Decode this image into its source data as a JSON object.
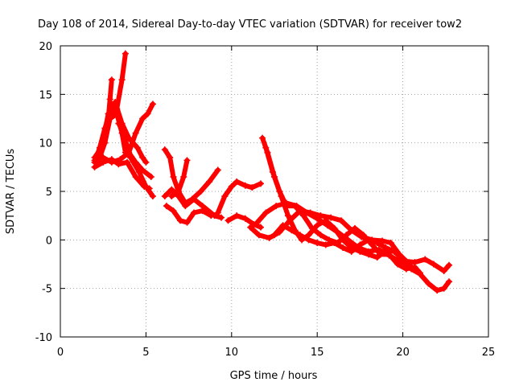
{
  "chart_data": {
    "type": "scatter",
    "title": "Day 108 of 2014, Sidereal Day-to-day VTEC variation (SDTVAR) for receiver tow2",
    "xlabel": "GPS time / hours",
    "ylabel": "SDTVAR / TECUs",
    "xlim": [
      0,
      25
    ],
    "ylim": [
      -10,
      20
    ],
    "xticks": [
      0,
      5,
      10,
      15,
      20,
      25
    ],
    "yticks": [
      -10,
      -5,
      0,
      5,
      10,
      15,
      20
    ],
    "xtick_labels": [
      "0",
      "5",
      "10",
      "15",
      "20",
      "25"
    ],
    "ytick_labels": [
      "-10",
      "-5",
      "0",
      "5",
      "10",
      "15",
      "20"
    ],
    "grid": true,
    "marker": "+",
    "color": "#ff0000",
    "series": [
      {
        "name": "track-1",
        "points": [
          [
            2.0,
            8.5
          ],
          [
            2.4,
            9.5
          ],
          [
            2.8,
            13.0
          ],
          [
            3.2,
            14.2
          ],
          [
            3.6,
            12.0
          ],
          [
            4.0,
            10.5
          ],
          [
            4.5,
            9.5
          ],
          [
            4.8,
            8.5
          ],
          [
            5.0,
            8.0
          ]
        ]
      },
      {
        "name": "track-2",
        "points": [
          [
            2.2,
            8.0
          ],
          [
            2.6,
            10.0
          ],
          [
            2.9,
            12.5
          ],
          [
            3.3,
            13.0
          ],
          [
            3.6,
            11.0
          ],
          [
            3.8,
            9.0
          ],
          [
            4.1,
            8.5
          ],
          [
            4.6,
            7.0
          ],
          [
            5.0,
            5.5
          ],
          [
            5.4,
            4.5
          ]
        ]
      },
      {
        "name": "track-3",
        "points": [
          [
            2.0,
            8.2
          ],
          [
            2.5,
            8.5
          ],
          [
            3.0,
            8.0
          ],
          [
            3.5,
            8.3
          ],
          [
            4.0,
            9.0
          ],
          [
            4.4,
            11.0
          ],
          [
            4.8,
            12.5
          ],
          [
            5.1,
            13.0
          ],
          [
            5.4,
            14.0
          ]
        ]
      },
      {
        "name": "track-4",
        "points": [
          [
            2.0,
            7.5
          ],
          [
            2.5,
            8.0
          ],
          [
            3.0,
            8.3
          ],
          [
            3.4,
            7.8
          ],
          [
            3.9,
            8.0
          ],
          [
            4.4,
            6.5
          ],
          [
            4.9,
            5.5
          ],
          [
            5.2,
            5.3
          ]
        ]
      },
      {
        "name": "track-5",
        "points": [
          [
            2.6,
            10.0
          ],
          [
            2.8,
            12.5
          ],
          [
            2.9,
            14.5
          ],
          [
            3.0,
            16.5
          ]
        ]
      },
      {
        "name": "track-6",
        "points": [
          [
            3.0,
            13.0
          ],
          [
            3.3,
            13.5
          ],
          [
            3.6,
            16.5
          ],
          [
            3.8,
            19.2
          ]
        ]
      },
      {
        "name": "track-7",
        "points": [
          [
            2.0,
            8.0
          ],
          [
            2.3,
            9.5
          ],
          [
            2.6,
            11.5
          ],
          [
            2.9,
            13.0
          ],
          [
            3.2,
            14.0
          ]
        ]
      },
      {
        "name": "track-8",
        "points": [
          [
            3.4,
            12.0
          ],
          [
            3.7,
            11.0
          ],
          [
            4.0,
            9.0
          ],
          [
            4.4,
            8.0
          ],
          [
            4.8,
            7.2
          ],
          [
            5.3,
            6.5
          ]
        ]
      },
      {
        "name": "track-9",
        "points": [
          [
            6.1,
            9.3
          ],
          [
            6.4,
            8.5
          ],
          [
            6.6,
            6.5
          ],
          [
            6.9,
            5.0
          ],
          [
            7.3,
            3.8
          ],
          [
            7.7,
            4.2
          ],
          [
            8.2,
            5.0
          ],
          [
            8.7,
            6.0
          ],
          [
            9.2,
            7.2
          ]
        ]
      },
      {
        "name": "track-10",
        "points": [
          [
            6.1,
            4.5
          ],
          [
            6.5,
            5.2
          ],
          [
            6.9,
            4.5
          ],
          [
            7.3,
            3.5
          ],
          [
            7.8,
            4.2
          ],
          [
            8.3,
            3.5
          ],
          [
            9.0,
            2.5
          ],
          [
            9.4,
            2.3
          ]
        ]
      },
      {
        "name": "track-11",
        "points": [
          [
            6.2,
            3.5
          ],
          [
            6.6,
            3.0
          ],
          [
            7.0,
            2.0
          ],
          [
            7.4,
            1.8
          ],
          [
            7.8,
            2.8
          ],
          [
            8.3,
            3.0
          ],
          [
            8.8,
            2.5
          ]
        ]
      },
      {
        "name": "track-12",
        "points": [
          [
            6.5,
            4.5
          ],
          [
            6.9,
            5.0
          ],
          [
            7.2,
            6.5
          ],
          [
            7.4,
            8.2
          ]
        ]
      },
      {
        "name": "track-13",
        "points": [
          [
            9.2,
            2.8
          ],
          [
            9.6,
            4.5
          ],
          [
            10.0,
            5.5
          ],
          [
            10.3,
            6.0
          ],
          [
            10.8,
            5.6
          ],
          [
            11.2,
            5.4
          ],
          [
            11.7,
            5.8
          ]
        ]
      },
      {
        "name": "track-14",
        "points": [
          [
            9.8,
            2.0
          ],
          [
            10.3,
            2.5
          ],
          [
            10.8,
            2.2
          ],
          [
            11.3,
            1.6
          ],
          [
            11.7,
            1.3
          ]
        ]
      },
      {
        "name": "track-15",
        "points": [
          [
            11.1,
            1.3
          ],
          [
            11.6,
            0.5
          ],
          [
            12.2,
            0.2
          ],
          [
            12.8,
            0.8
          ],
          [
            13.4,
            2.0
          ],
          [
            14.0,
            3.0
          ],
          [
            14.6,
            2.8
          ],
          [
            15.2,
            2.5
          ],
          [
            15.8,
            2.3
          ],
          [
            16.4,
            2.0
          ],
          [
            17.0,
            1.0
          ],
          [
            17.6,
            0.3
          ],
          [
            18.2,
            0.0
          ],
          [
            18.8,
            -0.1
          ],
          [
            19.3,
            -0.3
          ],
          [
            19.8,
            -1.5
          ],
          [
            20.2,
            -2.2
          ],
          [
            20.7,
            -2.3
          ],
          [
            21.3,
            -2.0
          ],
          [
            21.8,
            -2.5
          ],
          [
            22.4,
            -3.2
          ],
          [
            22.7,
            -2.6
          ]
        ]
      },
      {
        "name": "track-16",
        "points": [
          [
            11.8,
            10.5
          ],
          [
            12.1,
            9.0
          ],
          [
            12.5,
            6.5
          ],
          [
            12.9,
            4.5
          ],
          [
            13.3,
            2.5
          ],
          [
            13.7,
            1.0
          ],
          [
            14.1,
            0.0
          ],
          [
            14.5,
            0.5
          ],
          [
            15.0,
            1.5
          ],
          [
            15.5,
            2.0
          ],
          [
            16.0,
            1.2
          ],
          [
            16.5,
            0.0
          ],
          [
            17.0,
            -0.8
          ],
          [
            17.5,
            -1.2
          ],
          [
            18.0,
            -1.5
          ],
          [
            18.5,
            -1.8
          ],
          [
            19.0,
            -1.0
          ],
          [
            19.5,
            -1.2
          ],
          [
            20.0,
            -2.0
          ],
          [
            20.5,
            -3.0
          ],
          [
            21.0,
            -3.5
          ],
          [
            21.5,
            -4.5
          ],
          [
            22.0,
            -5.2
          ],
          [
            22.4,
            -5.0
          ],
          [
            22.7,
            -4.3
          ]
        ]
      },
      {
        "name": "track-17",
        "points": [
          [
            12.0,
            9.5
          ],
          [
            12.4,
            7.0
          ],
          [
            12.8,
            5.0
          ],
          [
            13.2,
            3.5
          ],
          [
            13.7,
            3.5
          ],
          [
            14.2,
            2.5
          ],
          [
            14.7,
            1.2
          ],
          [
            15.2,
            0.5
          ],
          [
            15.7,
            0.0
          ],
          [
            16.2,
            -0.3
          ],
          [
            16.7,
            0.5
          ],
          [
            17.2,
            1.2
          ],
          [
            17.7,
            0.5
          ],
          [
            18.2,
            -0.5
          ],
          [
            18.7,
            -1.5
          ],
          [
            19.2,
            -1.5
          ],
          [
            19.7,
            -2.5
          ],
          [
            20.2,
            -3.0
          ],
          [
            20.7,
            -2.8
          ],
          [
            21.0,
            -3.4
          ]
        ]
      },
      {
        "name": "track-18",
        "points": [
          [
            11.5,
            1.8
          ],
          [
            12.0,
            2.8
          ],
          [
            12.6,
            3.5
          ],
          [
            13.2,
            3.8
          ],
          [
            13.8,
            3.5
          ],
          [
            14.4,
            2.8
          ],
          [
            15.0,
            2.2
          ],
          [
            15.6,
            1.5
          ],
          [
            16.2,
            0.8
          ],
          [
            16.8,
            0.0
          ],
          [
            17.4,
            -0.8
          ],
          [
            18.0,
            -1.2
          ],
          [
            18.6,
            -1.0
          ],
          [
            19.2,
            -1.6
          ],
          [
            19.8,
            -2.2
          ],
          [
            20.4,
            -2.6
          ]
        ]
      },
      {
        "name": "track-19",
        "points": [
          [
            12.5,
            0.5
          ],
          [
            13.0,
            1.5
          ],
          [
            13.5,
            1.0
          ],
          [
            14.0,
            0.5
          ],
          [
            14.5,
            0.0
          ],
          [
            15.0,
            -0.3
          ],
          [
            15.5,
            -0.5
          ],
          [
            16.0,
            -0.3
          ],
          [
            16.5,
            -0.8
          ],
          [
            17.0,
            -1.2
          ],
          [
            17.5,
            -0.5
          ],
          [
            18.0,
            0.0
          ],
          [
            18.5,
            -0.3
          ],
          [
            19.0,
            -0.8
          ],
          [
            19.5,
            -1.2
          ]
        ]
      }
    ]
  }
}
